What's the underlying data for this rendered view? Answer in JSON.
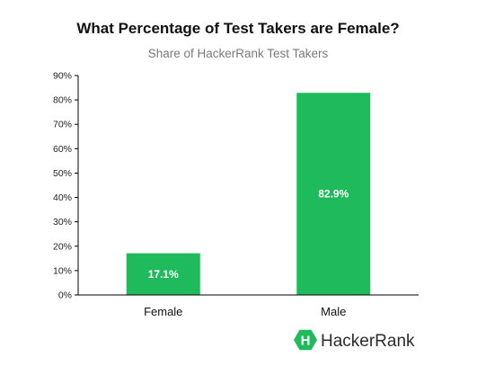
{
  "chart_data": {
    "type": "bar",
    "title": "What Percentage of Test Takers are Female?",
    "subtitle": "Share of HackerRank Test Takers",
    "categories": [
      "Female",
      "Male"
    ],
    "values": [
      17.1,
      82.9
    ],
    "value_labels": [
      "17.1%",
      "82.9%"
    ],
    "ylim": [
      0,
      90
    ],
    "yticks": [
      "0%",
      "10%",
      "20%",
      "30%",
      "40%",
      "50%",
      "60%",
      "70%",
      "80%",
      "90%"
    ],
    "grid": false,
    "bar_color": "#1fba5c",
    "xlabel": "",
    "ylabel": ""
  },
  "brand": {
    "name": "HackerRank",
    "logo_letter": "H",
    "logo_color": "#1fba5c"
  }
}
